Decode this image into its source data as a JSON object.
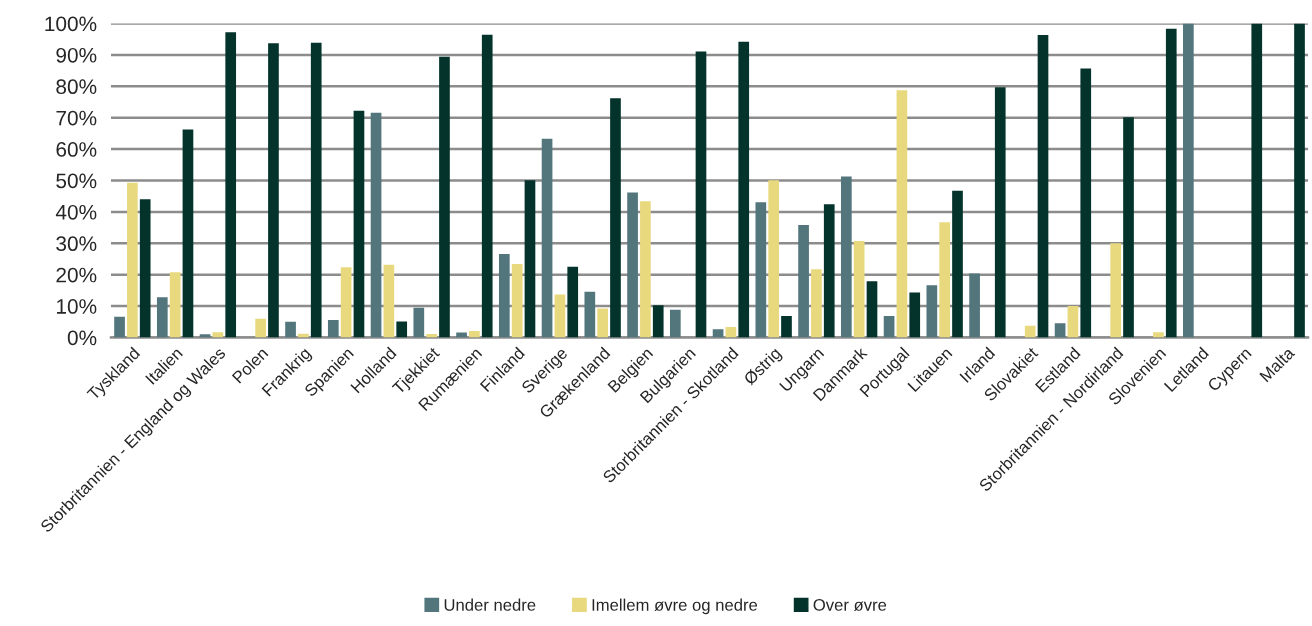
{
  "chart_data": {
    "type": "bar",
    "categories": [
      "Tyskland",
      "Italien",
      "Storbritannien - England og Wales",
      "Polen",
      "Frankrig",
      "Spanien",
      "Holland",
      "Tjekkiet",
      "Rumænien",
      "Finland",
      "Sverige",
      "Grækenland",
      "Belgien",
      "Bulgarien",
      "Storbritannien - Skotland",
      "Østrig",
      "Ungarn",
      "Danmark",
      "Portugal",
      "Litauen",
      "Irland",
      "Slovakiet",
      "Estland",
      "Storbritannien - Nordirland",
      "Slovenien",
      "Letland",
      "Cypern",
      "Malta"
    ],
    "series": [
      {
        "name": "Under nedre",
        "color": "#52767c",
        "values": [
          6.6,
          12.8,
          1.0,
          null,
          5.0,
          5.6,
          71.6,
          9.5,
          1.6,
          26.6,
          63.3,
          14.6,
          46.2,
          8.8,
          2.6,
          43.1,
          35.8,
          51.3,
          6.8,
          16.6,
          20.4,
          null,
          4.5,
          null,
          null,
          100,
          null,
          null
        ]
      },
      {
        "name": "Imellem øvre og nedre",
        "color": "#e8d97f",
        "values": [
          49.3,
          20.8,
          1.7,
          6.0,
          1.2,
          22.4,
          23.2,
          1.1,
          2.1,
          23.4,
          13.7,
          9.2,
          43.4,
          null,
          3.3,
          50.1,
          21.7,
          30.7,
          78.7,
          36.7,
          null,
          3.7,
          10.0,
          30.0,
          1.7,
          null,
          null,
          null
        ]
      },
      {
        "name": "Over øvre",
        "color": "#03332a",
        "values": [
          44.0,
          66.2,
          97.2,
          93.7,
          93.9,
          72.2,
          5.1,
          89.4,
          96.4,
          50.1,
          22.5,
          76.2,
          10.3,
          91.1,
          94.2,
          6.8,
          42.4,
          17.9,
          14.3,
          46.7,
          79.7,
          96.3,
          85.7,
          70.1,
          98.3,
          null,
          100,
          100
        ]
      }
    ],
    "ylim": [
      0,
      100
    ],
    "yticks": [
      {
        "value": 0,
        "label": "0%"
      },
      {
        "value": 10,
        "label": "10%"
      },
      {
        "value": 20,
        "label": "20%"
      },
      {
        "value": 30,
        "label": "30%"
      },
      {
        "value": 40,
        "label": "40%"
      },
      {
        "value": 50,
        "label": "50%"
      },
      {
        "value": 60,
        "label": "60%"
      },
      {
        "value": 70,
        "label": "70%"
      },
      {
        "value": 80,
        "label": "80%"
      },
      {
        "value": 90,
        "label": "90%"
      },
      {
        "value": 100,
        "label": "100%"
      }
    ],
    "grid": "y",
    "legend": "bottom"
  }
}
